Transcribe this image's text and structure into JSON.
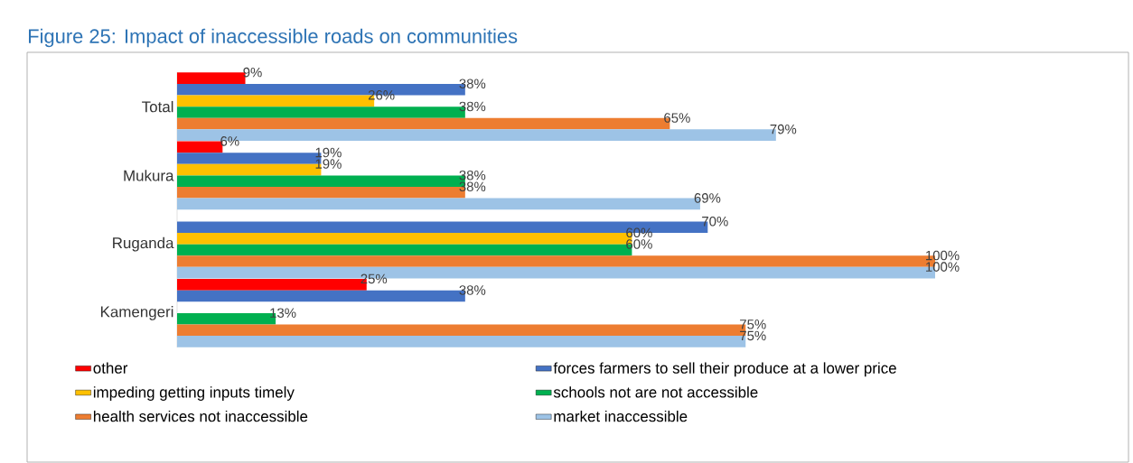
{
  "chart_data": {
    "type": "bar",
    "orientation": "horizontal",
    "title": "Figure 25: Impact of inaccessible roads on communities",
    "categories": [
      "Total",
      "Mukura",
      "Ruganda",
      "Kamengeri"
    ],
    "xlim": [
      0,
      100
    ],
    "tick_labels": "y",
    "legend": "bottom",
    "series": [
      {
        "name": "other",
        "color": "#ff0000",
        "values": [
          9,
          6,
          null,
          25
        ],
        "value_labels": [
          "9%",
          "6%",
          null,
          "25%"
        ]
      },
      {
        "name": "forces farmers to sell their produce at a lower price",
        "color": "#4472c4",
        "values": [
          38,
          19,
          70,
          38
        ],
        "value_labels": [
          "38%",
          "19%",
          "70%",
          "38%"
        ]
      },
      {
        "name": "impeding getting inputs timely",
        "color": "#ffc000",
        "values": [
          26,
          19,
          60,
          null
        ],
        "value_labels": [
          "26%",
          "19%",
          "60%",
          null
        ]
      },
      {
        "name": "schools not are not accessible",
        "color": "#00b050",
        "values": [
          38,
          38,
          60,
          13
        ],
        "value_labels": [
          "38%",
          "38%",
          "60%",
          "13%"
        ]
      },
      {
        "name": "health services not inaccessible",
        "color": "#ed7d31",
        "values": [
          65,
          38,
          100,
          75
        ],
        "value_labels": [
          "65%",
          "38%",
          "100%",
          "75%"
        ]
      },
      {
        "name": "market inaccessible",
        "color": "#9dc3e6",
        "values": [
          79,
          69,
          100,
          75
        ],
        "value_labels": [
          "79%",
          "69%",
          "100%",
          "75%"
        ]
      }
    ]
  }
}
